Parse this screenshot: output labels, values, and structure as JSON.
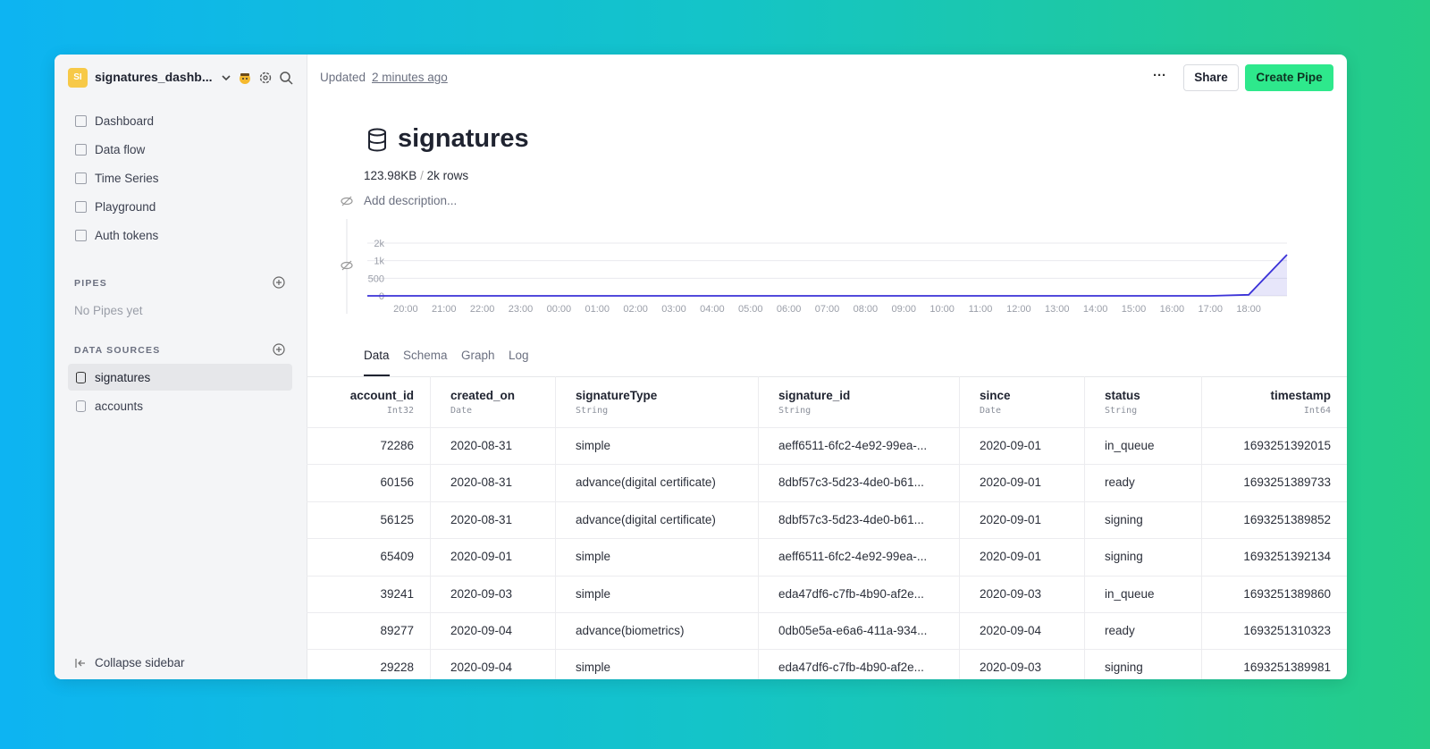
{
  "sidebar": {
    "workspace_initials": "SI",
    "workspace_name": "signatures_dashb...",
    "nav": [
      "Dashboard",
      "Data flow",
      "Time Series",
      "Playground",
      "Auth tokens"
    ],
    "pipes_heading": "PIPES",
    "pipes_empty": "No Pipes yet",
    "data_sources_heading": "DATA SOURCES",
    "data_sources": [
      "signatures",
      "accounts"
    ],
    "collapse": "Collapse sidebar"
  },
  "header": {
    "updated_prefix": "Updated",
    "updated_time": "2 minutes ago",
    "more": "···",
    "share": "Share",
    "create": "Create Pipe"
  },
  "datasource": {
    "name": "signatures",
    "size": "123.98KB",
    "separator": "/",
    "rows": "2k rows",
    "description": "Add description..."
  },
  "chart_data": {
    "type": "line",
    "color": "#3b32d8",
    "categories": [
      null,
      "20:00",
      "21:00",
      "22:00",
      "23:00",
      "00:00",
      "01:00",
      "02:00",
      "03:00",
      "04:00",
      "05:00",
      "06:00",
      "07:00",
      "08:00",
      "09:00",
      "10:00",
      "11:00",
      "12:00",
      "13:00",
      "14:00",
      "15:00",
      "16:00",
      "17:00",
      "18:00",
      null
    ],
    "values": [
      0,
      0,
      0,
      0,
      0,
      0,
      0,
      0,
      0,
      0,
      0,
      0,
      0,
      0,
      0,
      0,
      0,
      0,
      0,
      0,
      0,
      0,
      0,
      30,
      1170
    ],
    "ylim": [
      0,
      1500
    ],
    "yticks": [
      0,
      500,
      {
        "value": 1000,
        "label": "1k"
      },
      {
        "value": 1500,
        "label": "2k"
      }
    ],
    "grid": true
  },
  "tabs": [
    "Data",
    "Schema",
    "Graph",
    "Log"
  ],
  "table": {
    "columns": [
      {
        "name": "account_id",
        "type": "Int32"
      },
      {
        "name": "created_on",
        "type": "Date"
      },
      {
        "name": "signatureType",
        "type": "String"
      },
      {
        "name": "signature_id",
        "type": "String"
      },
      {
        "name": "since",
        "type": "Date"
      },
      {
        "name": "status",
        "type": "String"
      },
      {
        "name": "timestamp",
        "type": "Int64"
      }
    ],
    "rows": [
      [
        "72286",
        "2020-08-31",
        "simple",
        "aeff6511-6fc2-4e92-99ea-...",
        "2020-09-01",
        "in_queue",
        "1693251392015"
      ],
      [
        "60156",
        "2020-08-31",
        "advance(digital certificate)",
        "8dbf57c3-5d23-4de0-b61...",
        "2020-09-01",
        "ready",
        "1693251389733"
      ],
      [
        "56125",
        "2020-08-31",
        "advance(digital certificate)",
        "8dbf57c3-5d23-4de0-b61...",
        "2020-09-01",
        "signing",
        "1693251389852"
      ],
      [
        "65409",
        "2020-09-01",
        "simple",
        "aeff6511-6fc2-4e92-99ea-...",
        "2020-09-01",
        "signing",
        "1693251392134"
      ],
      [
        "39241",
        "2020-09-03",
        "simple",
        "eda47df6-c7fb-4b90-af2e...",
        "2020-09-03",
        "in_queue",
        "1693251389860"
      ],
      [
        "89277",
        "2020-09-04",
        "advance(biometrics)",
        "0db05e5a-e6a6-411a-934...",
        "2020-09-04",
        "ready",
        "1693251310323"
      ],
      [
        "29228",
        "2020-09-04",
        "simple",
        "eda47df6-c7fb-4b90-af2e...",
        "2020-09-03",
        "signing",
        "1693251389981"
      ]
    ]
  }
}
